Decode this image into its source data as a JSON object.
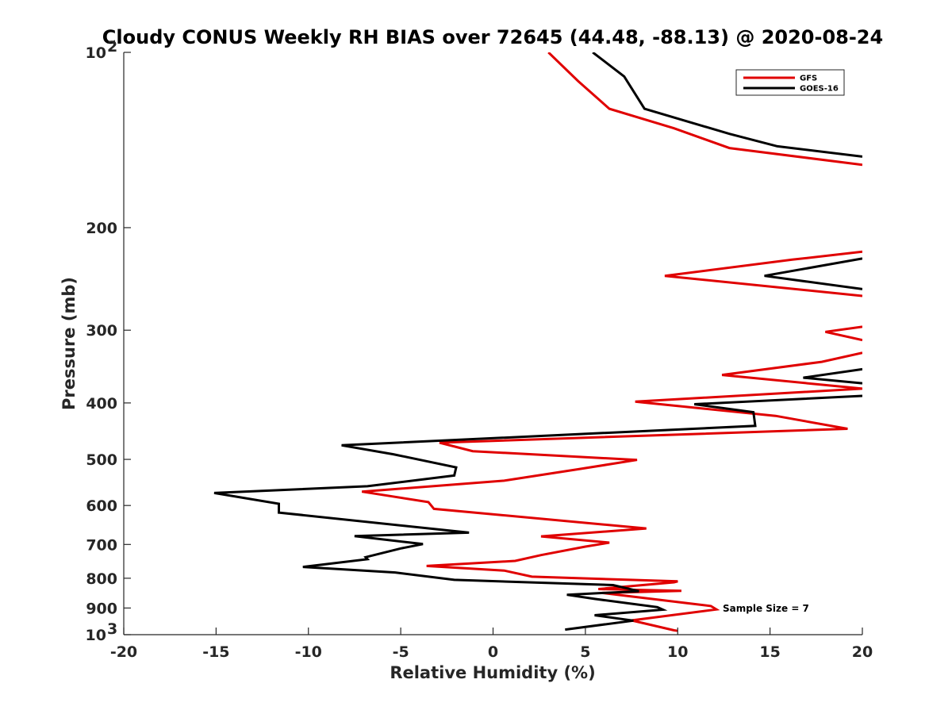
{
  "chart_data": {
    "type": "line",
    "title": "Cloudy CONUS Weekly RH BIAS over 72645 (44.48, -88.13) @ 2020-08-24",
    "xlabel": "Relative Humidity (%)",
    "ylabel": "Pressure (mb)",
    "xlim": [
      -20,
      20
    ],
    "ylim": [
      100,
      1000
    ],
    "y_scale": "log",
    "y_reversed": true,
    "grid": false,
    "x_ticks": [
      "-20",
      "-15",
      "-10",
      "-5",
      "0",
      "5",
      "10",
      "15",
      "20"
    ],
    "y_ticks": [
      {
        "value": 100,
        "base": "10",
        "exp": "2"
      },
      {
        "value": 200,
        "label": "200"
      },
      {
        "value": 300,
        "label": "300"
      },
      {
        "value": 400,
        "label": "400"
      },
      {
        "value": 500,
        "label": "500"
      },
      {
        "value": 600,
        "label": "600"
      },
      {
        "value": 700,
        "label": "700"
      },
      {
        "value": 800,
        "label": "800"
      },
      {
        "value": 900,
        "label": "900"
      },
      {
        "value": 1000,
        "base": "10",
        "exp": "3"
      }
    ],
    "legend": {
      "placement": "top-right"
    },
    "annotation": "Sample Size = 7",
    "series": [
      {
        "name": "GFS",
        "color": "#e00000",
        "segments": [
          [
            [
              3.0,
              100
            ],
            [
              4.6,
              112
            ],
            [
              6.3,
              125
            ],
            [
              9.8,
              135
            ],
            [
              12.8,
              146
            ],
            [
              20,
              156
            ]
          ],
          [
            [
              20,
              220
            ],
            [
              16.2,
              227
            ],
            [
              9.3,
              242
            ],
            [
              20,
              262
            ]
          ],
          [
            [
              20,
              296
            ],
            [
              18.0,
              302
            ],
            [
              20,
              312
            ]
          ],
          [
            [
              20,
              328
            ],
            [
              17.8,
              340
            ],
            [
              12.4,
              358
            ],
            [
              20,
              378
            ],
            [
              7.7,
              398
            ],
            [
              15.3,
              421
            ],
            [
              19.2,
              443
            ],
            [
              -2.9,
              468
            ],
            [
              -1.1,
              484
            ],
            [
              7.8,
              501
            ],
            [
              4.6,
              520
            ],
            [
              0.6,
              544
            ],
            [
              -7.1,
              568
            ],
            [
              -3.5,
              592
            ],
            [
              -3.2,
              608
            ],
            [
              8.3,
              657
            ],
            [
              2.6,
              678
            ],
            [
              6.3,
              695
            ],
            [
              5.0,
              706
            ],
            [
              2.6,
              730
            ],
            [
              1.2,
              747
            ],
            [
              -3.6,
              762
            ],
            [
              0.6,
              776
            ],
            [
              2.1,
              795
            ],
            [
              10.0,
              810
            ],
            [
              9.8,
              813
            ],
            [
              5.7,
              835
            ],
            [
              10.2,
              841
            ],
            [
              5.9,
              848
            ],
            [
              11.8,
              893
            ],
            [
              12.1,
              905
            ],
            [
              7.5,
              945
            ],
            [
              9.8,
              983
            ],
            [
              10.0,
              985
            ]
          ]
        ]
      },
      {
        "name": "GOES-16",
        "color": "#000000",
        "segments": [
          [
            [
              5.4,
              100
            ],
            [
              7.1,
              110
            ],
            [
              8.2,
              125
            ],
            [
              12.8,
              138
            ],
            [
              15.4,
              145
            ],
            [
              20,
              151
            ]
          ],
          [
            [
              20,
              226
            ],
            [
              14.7,
              242
            ],
            [
              20,
              255
            ]
          ],
          [
            [
              20,
              350
            ],
            [
              16.8,
              362
            ],
            [
              20,
              370
            ]
          ],
          [
            [
              20,
              389
            ],
            [
              10.9,
              402
            ],
            [
              14.1,
              415
            ],
            [
              14.2,
              438
            ],
            [
              -8.2,
              473
            ],
            [
              -5.4,
              490
            ],
            [
              -2.0,
              516
            ],
            [
              -2.1,
              533
            ],
            [
              -6.8,
              556
            ],
            [
              -15.1,
              571
            ],
            [
              -11.6,
              596
            ],
            [
              -11.6,
              617
            ],
            [
              -1.3,
              668
            ],
            [
              -7.5,
              677
            ],
            [
              -3.8,
              699
            ],
            [
              -5.0,
              711
            ],
            [
              -6.9,
              736
            ],
            [
              -6.8,
              742
            ],
            [
              -10.3,
              765
            ],
            [
              -5.3,
              782
            ],
            [
              -2.1,
              805
            ],
            [
              6.5,
              822
            ],
            [
              7.9,
              842
            ],
            [
              4.0,
              854
            ],
            [
              5.5,
              868
            ],
            [
              8.9,
              897
            ],
            [
              9.2,
              906
            ],
            [
              5.5,
              926
            ],
            [
              7.6,
              946
            ],
            [
              3.9,
              980
            ]
          ]
        ]
      }
    ]
  }
}
